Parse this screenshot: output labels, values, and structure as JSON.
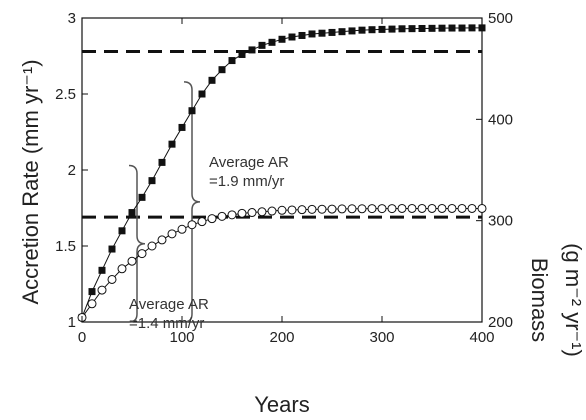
{
  "chart_data": {
    "type": "line",
    "xlabel": "Years",
    "ylabel": "Accretion Rate (mm yr⁻¹)",
    "y2label_line1": "Biomass",
    "y2label_line2": "(g m⁻² yr⁻¹)",
    "xlim": [
      0,
      400
    ],
    "ylim": [
      1,
      3
    ],
    "y2lim": [
      200,
      500
    ],
    "x_ticks": [
      "0",
      "100",
      "200",
      "300",
      "400"
    ],
    "y_ticks": [
      "1",
      "1.5",
      "2",
      "2.5",
      "3"
    ],
    "y2_ticks": [
      "200",
      "300",
      "400",
      "500"
    ],
    "grid": false,
    "series": [
      {
        "marker": "filled-square",
        "color": "#111111",
        "x": [
          0,
          10,
          20,
          30,
          40,
          50,
          60,
          70,
          80,
          90,
          100,
          110,
          120,
          130,
          140,
          150,
          160,
          170,
          180,
          190,
          200,
          210,
          220,
          230,
          240,
          250,
          260,
          270,
          280,
          290,
          300,
          310,
          320,
          330,
          340,
          350,
          360,
          370,
          380,
          390,
          400
        ],
        "y": [
          1.03,
          1.2,
          1.34,
          1.48,
          1.6,
          1.72,
          1.82,
          1.93,
          2.05,
          2.17,
          2.28,
          2.39,
          2.5,
          2.59,
          2.66,
          2.72,
          2.76,
          2.79,
          2.82,
          2.84,
          2.86,
          2.875,
          2.885,
          2.895,
          2.9,
          2.905,
          2.91,
          2.915,
          2.92,
          2.923,
          2.925,
          2.927,
          2.929,
          2.93,
          2.931,
          2.932,
          2.933,
          2.934,
          2.934,
          2.935,
          2.935
        ]
      },
      {
        "marker": "open-circle",
        "color": "#111111",
        "x": [
          0,
          10,
          20,
          30,
          40,
          50,
          60,
          70,
          80,
          90,
          100,
          110,
          120,
          130,
          140,
          150,
          160,
          170,
          180,
          190,
          200,
          210,
          220,
          230,
          240,
          250,
          260,
          270,
          280,
          290,
          300,
          310,
          320,
          330,
          340,
          350,
          360,
          370,
          380,
          390,
          400
        ],
        "y": [
          1.03,
          1.12,
          1.21,
          1.28,
          1.35,
          1.4,
          1.45,
          1.5,
          1.54,
          1.58,
          1.61,
          1.64,
          1.66,
          1.68,
          1.695,
          1.705,
          1.715,
          1.72,
          1.725,
          1.73,
          1.735,
          1.737,
          1.739,
          1.741,
          1.742,
          1.743,
          1.744,
          1.745,
          1.745,
          1.746,
          1.746,
          1.746,
          1.747,
          1.747,
          1.747,
          1.747,
          1.747,
          1.747,
          1.747,
          1.747,
          1.747
        ]
      }
    ],
    "reference_lines": [
      {
        "y": 2.78,
        "style": "dashed"
      },
      {
        "y": 1.69,
        "style": "dashed"
      }
    ],
    "annotations": [
      {
        "line1": "Average AR",
        "line2": "=1.9 mm/yr",
        "bracket_y_range": [
          1.0,
          2.58
        ],
        "bracket_x": 110
      },
      {
        "line1": "Average AR",
        "line2": "=1.4 mm/yr",
        "bracket_y_range": [
          1.0,
          2.03
        ],
        "bracket_x": 55
      }
    ]
  }
}
